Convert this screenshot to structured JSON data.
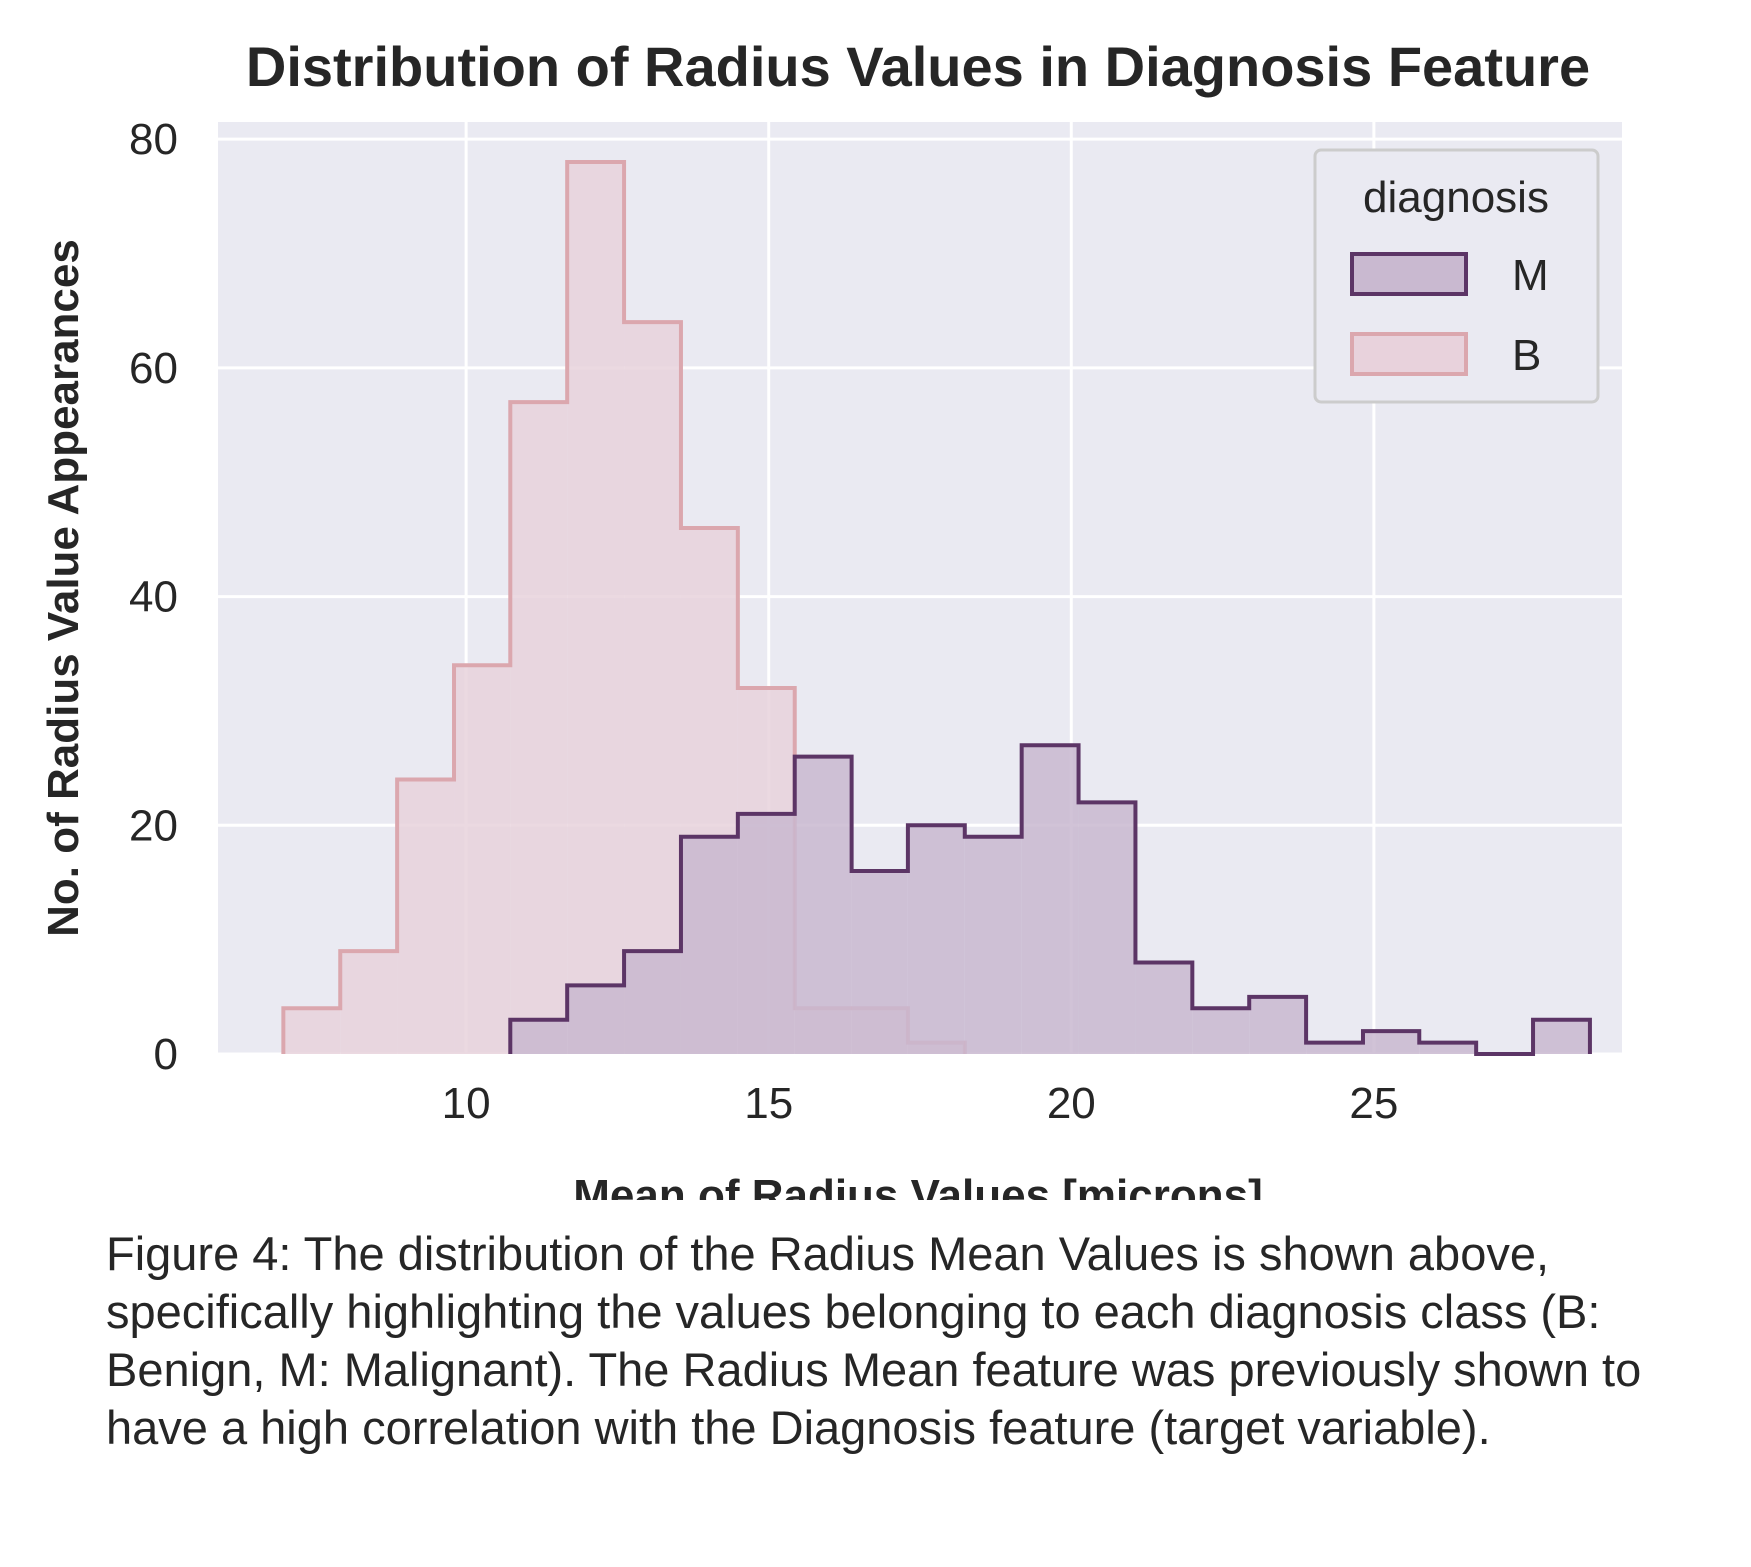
{
  "chart_data": {
    "type": "histogram",
    "title": "Distribution of Radius Values in Diagnosis Feature",
    "xlabel": "Mean of Radius Values [microns]",
    "ylabel": "No. of Radius Value Appearances",
    "xlim": [
      5.9,
      29.1
    ],
    "ylim": [
      0,
      81.5
    ],
    "xticks": [
      10,
      15,
      20,
      25
    ],
    "yticks": [
      0,
      20,
      40,
      60,
      80
    ],
    "grid": true,
    "legend": {
      "title": "diagnosis",
      "placement": "top-right"
    },
    "series": [
      {
        "name": "B",
        "color": "#dba7ae",
        "fill_color": "#e8d2dc",
        "bin_edges": [
          6.98,
          7.92,
          8.86,
          9.8,
          10.73,
          11.67,
          12.61,
          13.55,
          14.49,
          15.43,
          16.37,
          17.3,
          18.24
        ],
        "counts": [
          4,
          9,
          24,
          34,
          57,
          78,
          64,
          46,
          32,
          4,
          4,
          1
        ]
      },
      {
        "name": "M",
        "color": "#5c3566",
        "fill_color": "#c9b9d0",
        "bin_edges": [
          10.73,
          11.67,
          12.61,
          13.55,
          14.49,
          15.43,
          16.37,
          17.3,
          18.24,
          19.18,
          20.12,
          21.06,
          22.0,
          22.94,
          23.88,
          24.82,
          25.75,
          26.69,
          27.63,
          28.57
        ],
        "counts": [
          3,
          6,
          9,
          19,
          21,
          26,
          16,
          20,
          19,
          27,
          22,
          8,
          4,
          5,
          1,
          2,
          1,
          0,
          3
        ]
      }
    ]
  },
  "caption": "Figure 4: The distribution of the Radius Mean Values is shown above, specifically highlighting the values belonging to each diagnosis class (B: Benign, M: Malignant). The Radius Mean feature was previously shown to have a high correlation with the Diagnosis feature (target variable).",
  "colors": {
    "plot_background": "#eaeaf2",
    "grid": "#ffffff",
    "text": "#262626"
  }
}
